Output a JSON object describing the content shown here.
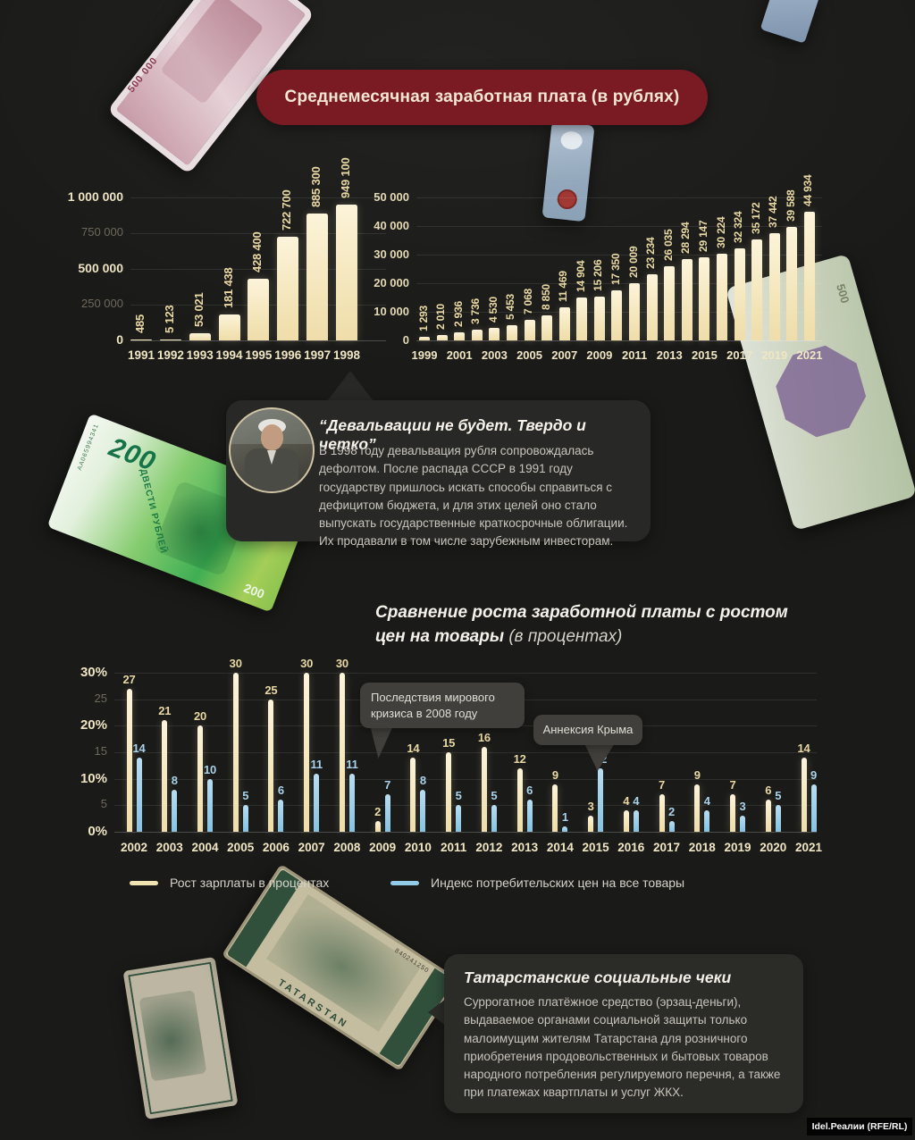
{
  "page": {
    "bg": "#1a1a18",
    "watermark": "Idel.Реалии (RFE/RL)"
  },
  "header": {
    "title": "Среднемесячная заработная плата (в рублях)",
    "bg": "#7a1b23"
  },
  "quote": {
    "title": "“Девальвации не будет. Твердо и четко”",
    "body": "В 1998 году девальвация рубля сопровождалась дефолтом. После распада СССР в 1991 году государству пришлось искать способы справиться с дефицитом бюджета, и для этих целей оно стало выпускать государственные краткосрочные облигации. Их продавали в том числе зарубежным инвесторам."
  },
  "section2_title": {
    "line1": "Сравнение роста заработной платы с ростом",
    "line2_bold": "цен на товары",
    "line2_light": " (в процентах)"
  },
  "social": {
    "title": "Татарстанские социальные чеки",
    "body": "Суррогатное платёжное средство (эрзац-деньги), выдаваемое органами социальной защиты только малоимущим жителям Татарстана для розничного приобретения продовольственных и бытовых товаров народного потребления регулируемого перечня, а также при платежах квартплаты и услуг ЖКХ."
  },
  "banknotes": {
    "n500000": "500 000",
    "n200": "200",
    "n200_text": "ДВЕСТИ РУБЛЕЙ",
    "n200_serial": "АА065994341",
    "n500": "500",
    "tatarstan": "TATARSTAN",
    "tat_serial": "840241250"
  },
  "chart_data": [
    {
      "type": "bar",
      "title": "Среднемесячная заработная плата (в рублях), 1991–1998",
      "categories": [
        "1991",
        "1992",
        "1993",
        "1994",
        "1995",
        "1996",
        "1997",
        "1998"
      ],
      "values": [
        485,
        5123,
        53021,
        181438,
        428400,
        722700,
        885300,
        949100
      ],
      "value_labels": [
        "485",
        "5 123",
        "53 021",
        "181 438",
        "428 400",
        "722 700",
        "885 300",
        "949 100"
      ],
      "y_ticks": [
        "1 000 000",
        "750 000",
        "500 000",
        "250 000",
        "0"
      ],
      "ylim": [
        0,
        1000000
      ],
      "bar_color": "#f5e8c0",
      "grid": true
    },
    {
      "type": "bar",
      "title": "Среднемесячная заработная плата (в рублях), 1999–2021",
      "categories": [
        "1999",
        "2000",
        "2001",
        "2002",
        "2003",
        "2004",
        "2005",
        "2006",
        "2007",
        "2008",
        "2009",
        "2010",
        "2011",
        "2012",
        "2013",
        "2014",
        "2015",
        "2016",
        "2017",
        "2018",
        "2019",
        "2020",
        "2021"
      ],
      "values": [
        1293,
        2010,
        2936,
        3736,
        4530,
        5453,
        7068,
        8850,
        11469,
        14904,
        15206,
        17350,
        20009,
        23234,
        26035,
        28294,
        29147,
        30224,
        32324,
        35172,
        37442,
        39588,
        44934
      ],
      "value_labels": [
        "1 293",
        "2 010",
        "2 936",
        "3 736",
        "4 530",
        "5 453",
        "7 068",
        "8 850",
        "11 469",
        "14 904",
        "15 206",
        "17 350",
        "20 009",
        "23 234",
        "26 035",
        "28 294",
        "29 147",
        "30 224",
        "32 324",
        "35 172",
        "37 442",
        "39 588",
        "44 934"
      ],
      "y_ticks": [
        "50 000",
        "40 000",
        "30 000",
        "20 000",
        "10 000",
        "0"
      ],
      "x_tick_step": 2,
      "ylim": [
        0,
        50000
      ],
      "bar_color": "#f5e8c0",
      "grid": true
    },
    {
      "type": "grouped-bar",
      "title": "Сравнение роста заработной платы с ростом цен на товары (в процентах)",
      "categories": [
        "2002",
        "2003",
        "2004",
        "2005",
        "2006",
        "2007",
        "2008",
        "2009",
        "2010",
        "2011",
        "2012",
        "2013",
        "2014",
        "2015",
        "2016",
        "2017",
        "2018",
        "2019",
        "2020",
        "2021"
      ],
      "series": [
        {
          "name": "Рост зарплаты в процентах",
          "color": "#f2e3b2",
          "values": [
            27,
            21,
            20,
            30,
            25,
            30,
            30,
            2,
            14,
            15,
            16,
            12,
            9,
            3,
            4,
            7,
            9,
            7,
            6,
            14
          ]
        },
        {
          "name": "Индекс потребительских цен на все товары",
          "color": "#92cbe8",
          "values": [
            14,
            8,
            10,
            5,
            6,
            11,
            11,
            7,
            8,
            5,
            5,
            6,
            1,
            12,
            4,
            2,
            4,
            3,
            5,
            9
          ]
        }
      ],
      "y_ticks": [
        {
          "label": "30%",
          "strong": true
        },
        {
          "label": "25",
          "strong": false
        },
        {
          "label": "20%",
          "strong": true
        },
        {
          "label": "15",
          "strong": false
        },
        {
          "label": "10%",
          "strong": true
        },
        {
          "label": "5",
          "strong": false
        },
        {
          "label": "0%",
          "strong": true
        }
      ],
      "ylim": [
        0,
        30
      ],
      "grid": true,
      "legend_position": "bottom",
      "annotations": [
        {
          "text": "Последствия мирового кризиса в 2008 году",
          "target": "2009"
        },
        {
          "text": "Аннексия Крыма",
          "target": "2014–2015"
        }
      ]
    }
  ]
}
